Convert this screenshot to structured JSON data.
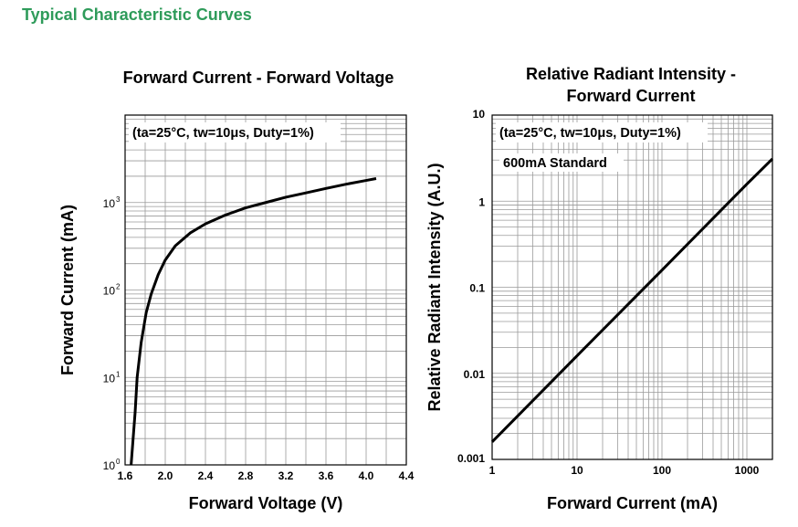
{
  "page": {
    "title": "Typical Characteristic Curves",
    "title_color": "#2e9b5a"
  },
  "chart_data": [
    {
      "type": "line",
      "title": "Forward Current - Forward Voltage",
      "annotation": "(ta=25°C, tw=10μs, Duty=1%)",
      "xlabel": "Forward Voltage (V)",
      "ylabel": "Forward Current (mA)",
      "xlim": [
        1.6,
        4.4
      ],
      "ylim": [
        1,
        10000
      ],
      "y_scale": "log",
      "x_scale": "linear",
      "grid": true,
      "x_ticks": [
        {
          "value": 1.6,
          "label": "1.6"
        },
        {
          "value": 2.0,
          "label": "2.0"
        },
        {
          "value": 2.4,
          "label": "2.4"
        },
        {
          "value": 2.8,
          "label": "2.8"
        },
        {
          "value": 3.2,
          "label": "3.2"
        },
        {
          "value": 3.6,
          "label": "3.6"
        },
        {
          "value": 4.0,
          "label": "4.0"
        },
        {
          "value": 4.4,
          "label": "4.4"
        }
      ],
      "y_ticks": [
        {
          "value": 1,
          "base": "10",
          "exp": "0"
        },
        {
          "value": 10,
          "base": "10",
          "exp": "1"
        },
        {
          "value": 100,
          "base": "10",
          "exp": "2"
        },
        {
          "value": 1000,
          "base": "10",
          "exp": "3"
        }
      ],
      "series": [
        {
          "name": "",
          "points": [
            [
              1.66,
              1
            ],
            [
              1.68,
              2
            ],
            [
              1.7,
              4
            ],
            [
              1.72,
              10
            ],
            [
              1.76,
              25
            ],
            [
              1.81,
              55
            ],
            [
              1.86,
              90
            ],
            [
              1.93,
              150
            ],
            [
              2.0,
              220
            ],
            [
              2.1,
              320
            ],
            [
              2.25,
              450
            ],
            [
              2.4,
              570
            ],
            [
              2.6,
              720
            ],
            [
              2.8,
              870
            ],
            [
              3.0,
              1000
            ],
            [
              3.2,
              1150
            ],
            [
              3.4,
              1290
            ],
            [
              3.6,
              1450
            ],
            [
              3.8,
              1620
            ],
            [
              4.0,
              1790
            ],
            [
              4.1,
              1880
            ]
          ]
        }
      ]
    },
    {
      "type": "line",
      "title": "Relative Radiant Intensity - Forward Current",
      "title_lines": [
        "Relative Radiant Intensity -",
        "Forward Current"
      ],
      "annotation": "(ta=25°C, tw=10μs, Duty=1%)",
      "annotation2": "600mA Standard",
      "xlabel": "Forward Current (mA)",
      "ylabel": "Relative Radiant Intensity (A.U.)",
      "xlim": [
        1,
        2000
      ],
      "ylim": [
        0.001,
        10
      ],
      "x_scale": "log",
      "y_scale": "log",
      "grid": true,
      "x_ticks": [
        {
          "value": 1,
          "label": "1"
        },
        {
          "value": 10,
          "label": "10"
        },
        {
          "value": 100,
          "label": "100"
        },
        {
          "value": 1000,
          "label": "1000"
        }
      ],
      "y_ticks": [
        {
          "value": 0.001,
          "label": "0.001"
        },
        {
          "value": 0.01,
          "label": "0.01"
        },
        {
          "value": 0.1,
          "label": "0.1"
        },
        {
          "value": 1,
          "label": "1"
        },
        {
          "value": 10,
          "label": "10"
        }
      ],
      "series": [
        {
          "name": "",
          "points": [
            [
              1,
              0.0016
            ],
            [
              10,
              0.016
            ],
            [
              100,
              0.158
            ],
            [
              1000,
              1.58
            ],
            [
              2000,
              3.1
            ]
          ]
        }
      ]
    }
  ]
}
